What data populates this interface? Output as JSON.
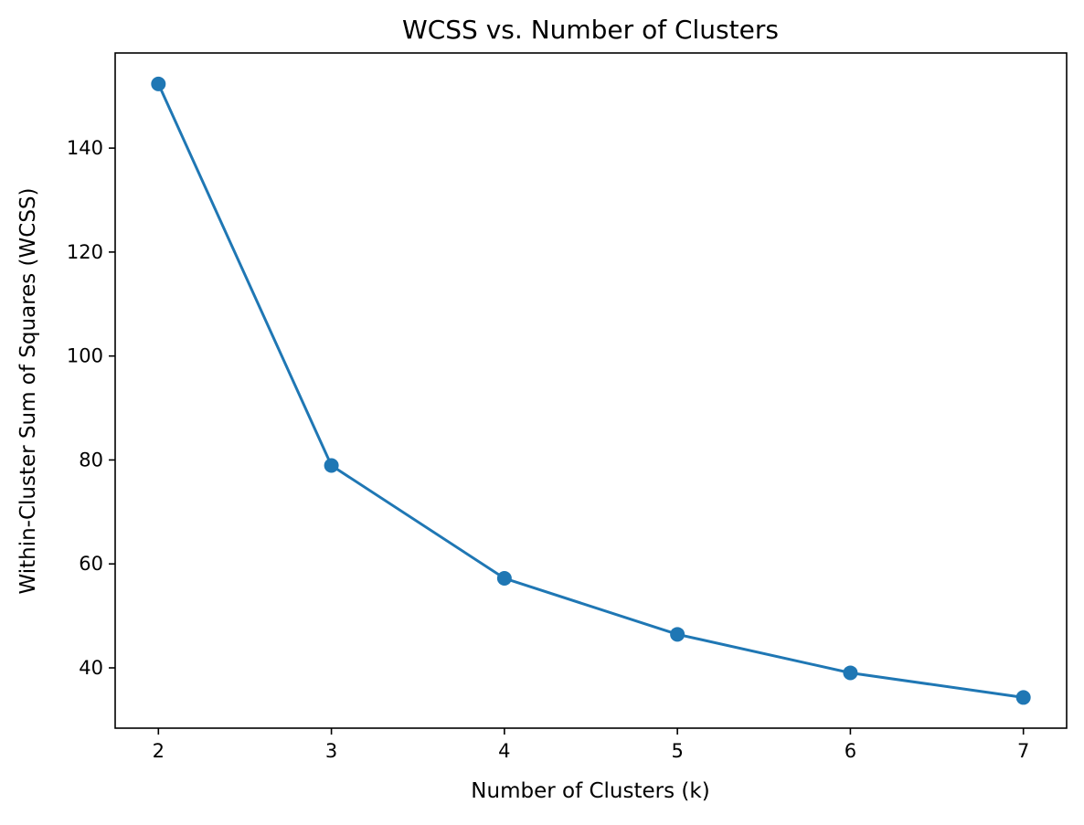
{
  "chart_data": {
    "type": "line",
    "title": "WCSS vs. Number of Clusters",
    "xlabel": "Number of Clusters (k)",
    "ylabel": "Within-Cluster Sum of Squares (WCSS)",
    "x": [
      2,
      3,
      4,
      5,
      6,
      7
    ],
    "series": [
      {
        "values": [
          152.35,
          78.94,
          57.23,
          46.45,
          39.04,
          34.3
        ]
      }
    ],
    "xticks": [
      2,
      3,
      4,
      5,
      6,
      7
    ],
    "xtick_labels": [
      "2",
      "3",
      "4",
      "5",
      "6",
      "7"
    ],
    "yticks": [
      40,
      60,
      80,
      100,
      120,
      140
    ],
    "ytick_labels": [
      "40",
      "60",
      "80",
      "100",
      "120",
      "140"
    ],
    "xlim": [
      1.75,
      7.25
    ],
    "ylim": [
      28.4,
      158.3
    ],
    "grid": false,
    "marker": "circle",
    "colors": {
      "series": "#1f77b4",
      "axes": "#000000"
    }
  }
}
